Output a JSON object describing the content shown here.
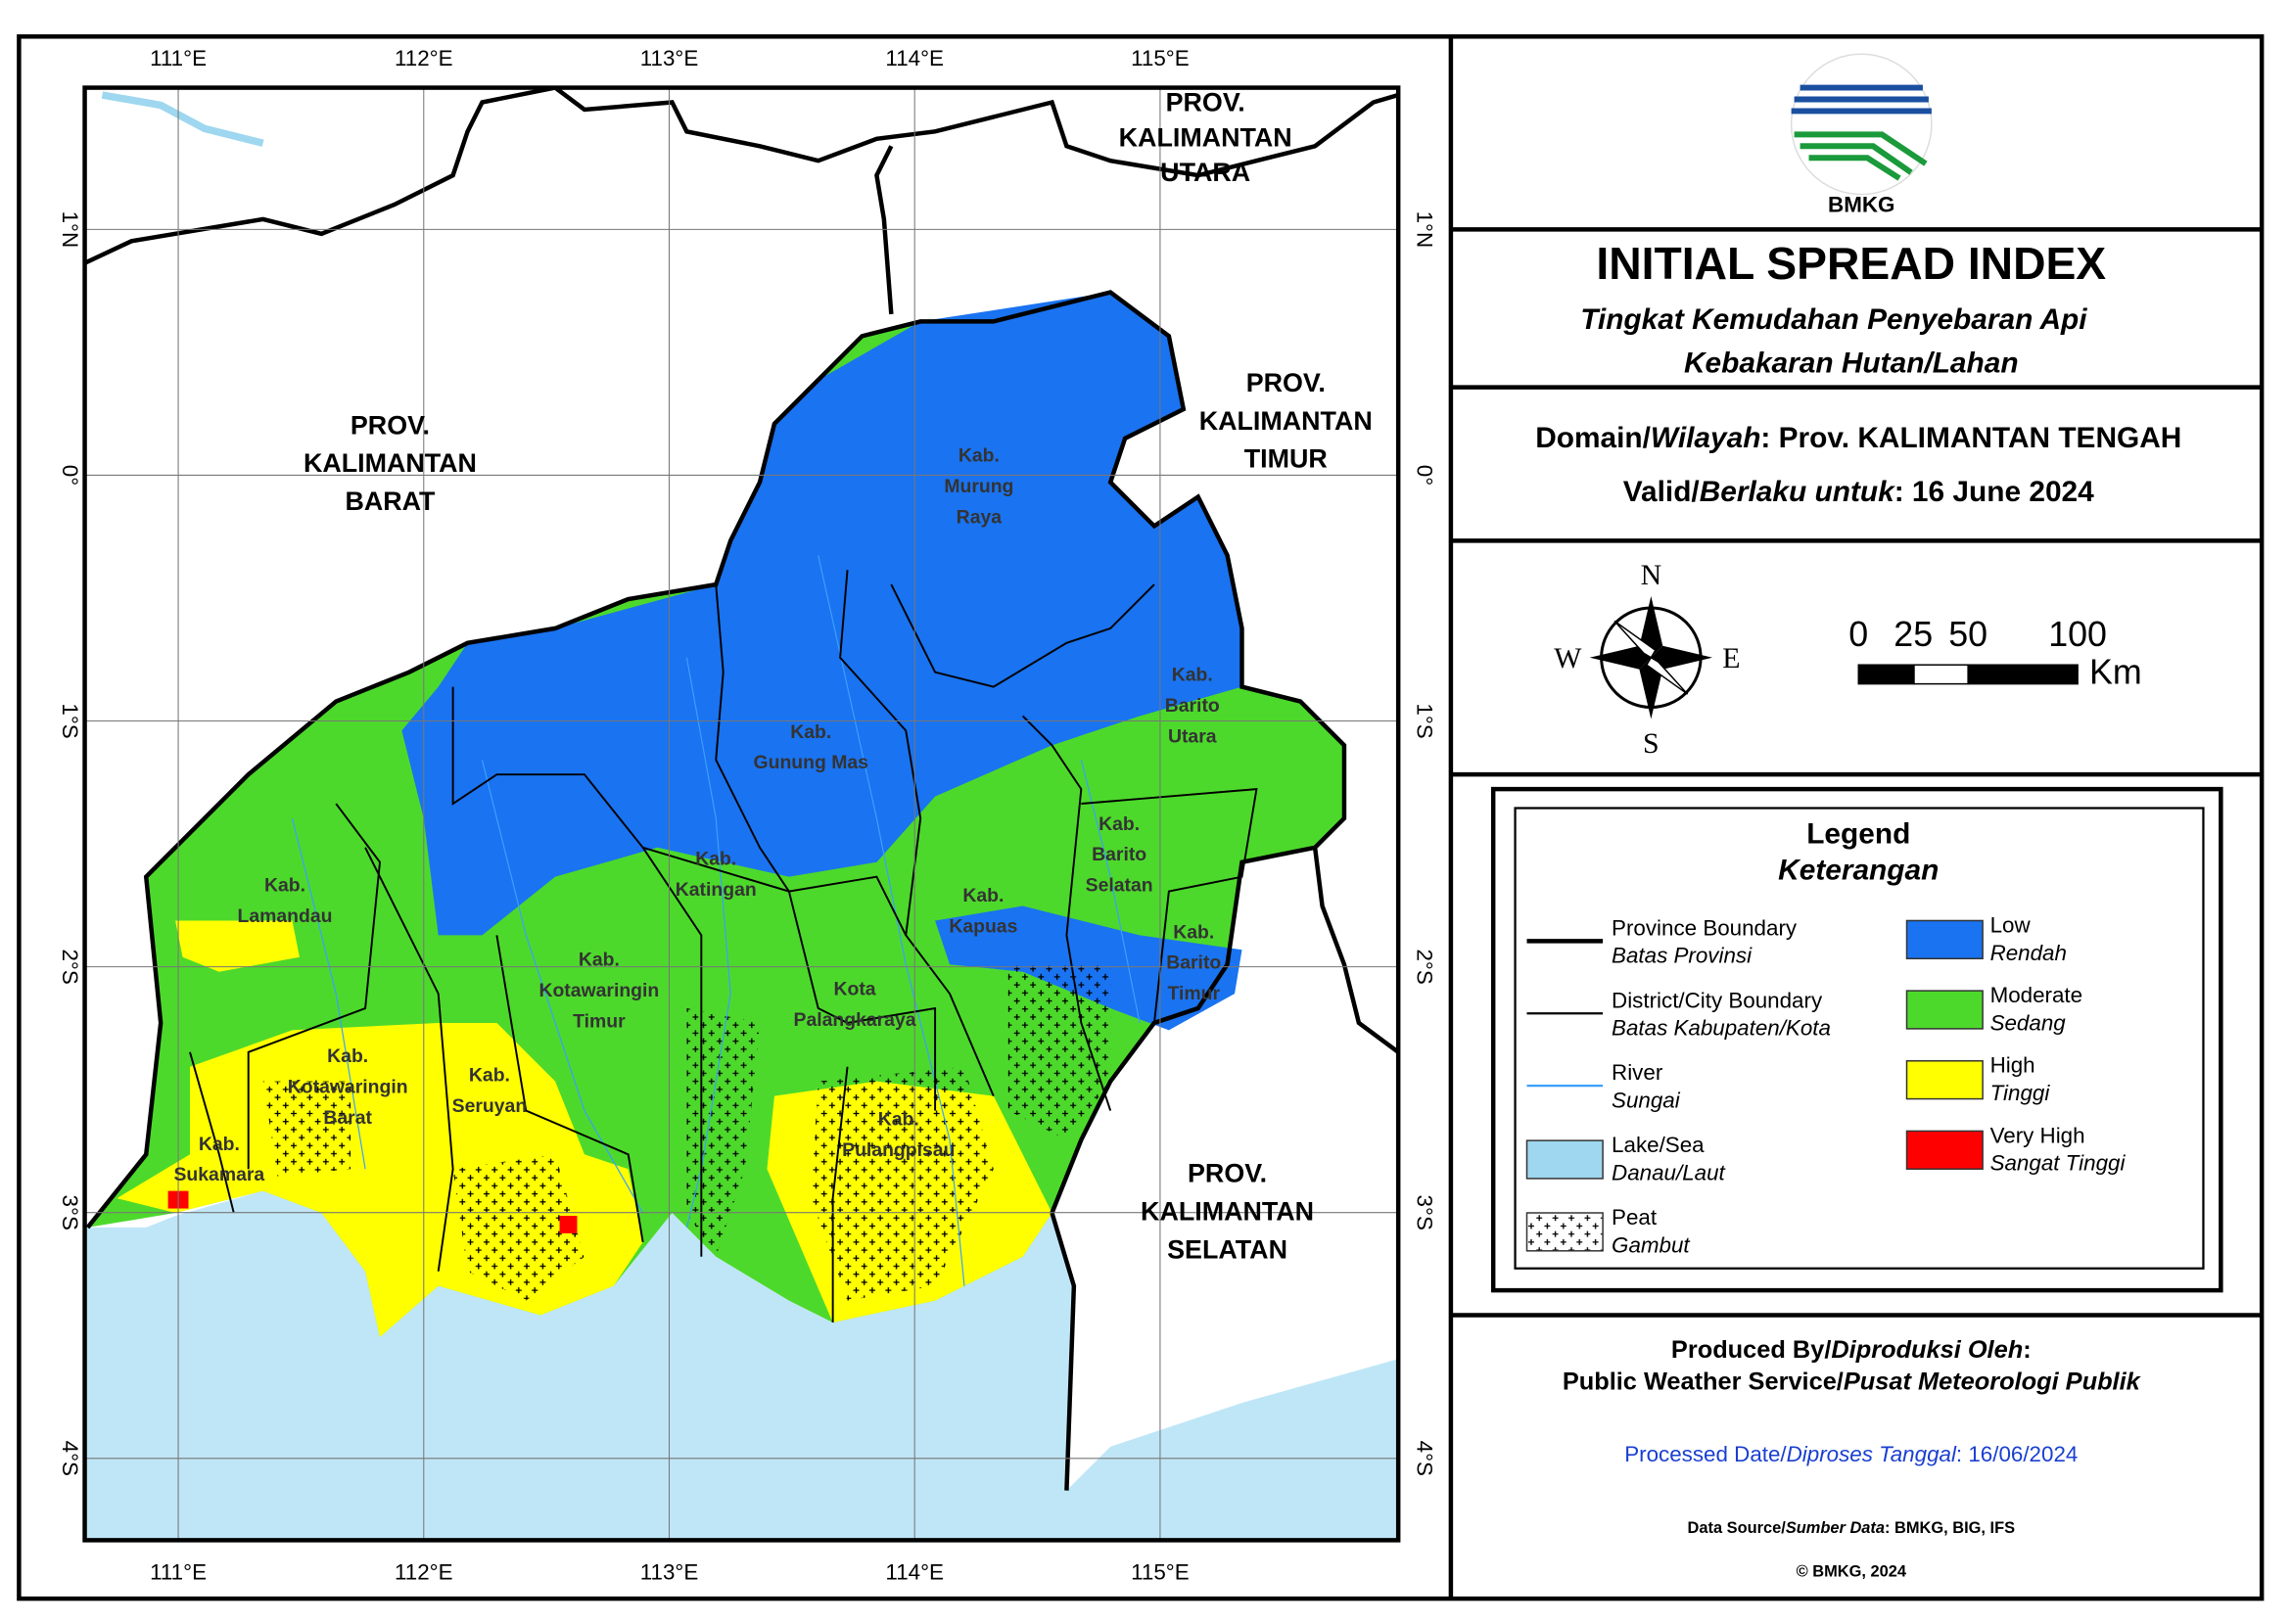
{
  "header": {
    "logo_text": "BMKG",
    "title": "INITIAL SPREAD INDEX",
    "subtitle": [
      "Tingkat Kemudahan Penyebaran Api",
      "Kebakaran Hutan/Lahan"
    ]
  },
  "info": {
    "domain": [
      "Domain/",
      "Wilayah",
      ": Prov. KALIMANTAN TENGAH"
    ],
    "valid": [
      "Valid/",
      "Berlaku untuk",
      ": 16 June 2024"
    ]
  },
  "compass": {
    "north": "N",
    "south": "S",
    "east": "E",
    "west": "W"
  },
  "scale_bar": {
    "ticks": [
      0,
      25,
      50,
      100
    ],
    "unit": "Km"
  },
  "legend": {
    "title": "Legend",
    "subtitle": "Keterangan",
    "items": [
      {
        "label": "Province Boundary",
        "label_id": "Batas Provinsi"
      },
      {
        "label": "District/City Boundary",
        "label_id": "Batas Kabupaten/Kota"
      },
      {
        "label": "River",
        "label_id": "Sungai"
      },
      {
        "label": "Lake/Sea",
        "label_id": "Danau/Laut"
      },
      {
        "label": "Peat",
        "label_id": "Gambut"
      },
      {
        "label": "Low",
        "label_id": "Rendah"
      },
      {
        "label": "Moderate",
        "label_id": "Sedang"
      },
      {
        "label": "High",
        "label_id": "Tinggi"
      },
      {
        "label": "Very High",
        "label_id": "Sangat Tinggi"
      }
    ]
  },
  "footer": {
    "produced": [
      "Produced By/",
      "Diproduksi Oleh",
      ":"
    ],
    "service": [
      "Public Weather Service/",
      "Pusat Meteorologi Publik"
    ],
    "processed": [
      "Processed Date/",
      "Diproses Tanggal",
      ": 16/06/2024"
    ],
    "source": [
      "Data Source/",
      "Sumber Data",
      ": BMKG, BIG, IFS"
    ],
    "copyright": "© BMKG, 2024"
  },
  "map": {
    "lon_labels": [
      "111°E",
      "112°E",
      "113°E",
      "114°E",
      "115°E"
    ],
    "lat_labels": [
      "1°N",
      "0°",
      "1°S",
      "2°S",
      "3°S",
      "4°S"
    ],
    "provinces": [
      {
        "lines": [
          "PROV.",
          "KALIMANTAN",
          "BARAT"
        ]
      },
      {
        "lines": [
          "PROV.",
          "KALIMANTAN",
          "TIMUR"
        ]
      },
      {
        "lines": [
          "PROV.",
          "KALIMANTAN",
          "SELATAN"
        ]
      },
      {
        "lines": [
          "PROV.",
          "KALIMANTAN",
          "UTARA"
        ]
      }
    ],
    "regencies": [
      {
        "lines": [
          "Kab.",
          "Murung",
          "Raya"
        ]
      },
      {
        "lines": [
          "Kab.",
          "Gunung Mas"
        ]
      },
      {
        "lines": [
          "Kab.",
          "Barito",
          "Utara"
        ]
      },
      {
        "lines": [
          "Kab.",
          "Barito",
          "Selatan"
        ]
      },
      {
        "lines": [
          "Kab.",
          "Barito",
          "Timur"
        ]
      },
      {
        "lines": [
          "Kab.",
          "Kapuas"
        ]
      },
      {
        "lines": [
          "Kab.",
          "Katingan"
        ]
      },
      {
        "lines": [
          "Kab.",
          "Lamandau"
        ]
      },
      {
        "lines": [
          "Kab.",
          "Kotawaringin",
          "Timur"
        ]
      },
      {
        "lines": [
          "Kota",
          "Palangkaraya"
        ]
      },
      {
        "lines": [
          "Kab.",
          "Kotawaringin",
          "Barat"
        ]
      },
      {
        "lines": [
          "Kab.",
          "Seruyan"
        ]
      },
      {
        "lines": [
          "Kab.",
          "Pulangpisau"
        ]
      },
      {
        "lines": [
          "Kab.",
          "Sukamara"
        ]
      }
    ]
  }
}
